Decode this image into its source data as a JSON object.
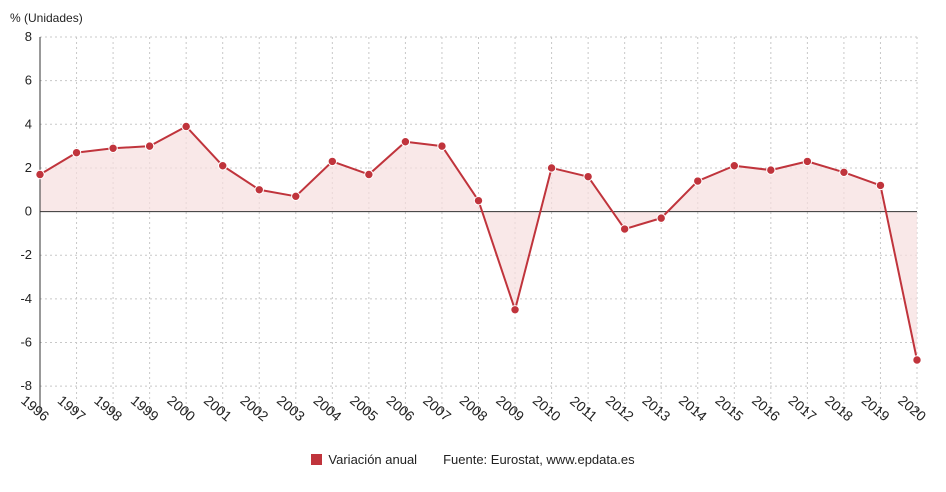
{
  "chart_data": {
    "type": "line",
    "unit_label": "% (Unidades)",
    "x": [
      "1996",
      "1997",
      "1998",
      "1999",
      "2000",
      "2001",
      "2002",
      "2003",
      "2004",
      "2005",
      "2006",
      "2007",
      "2008",
      "2009",
      "2010",
      "2011",
      "2012",
      "2013",
      "2014",
      "2015",
      "2016",
      "2017",
      "2018",
      "2019",
      "2020"
    ],
    "series": [
      {
        "name": "Variación anual",
        "values": [
          1.7,
          2.7,
          2.9,
          3.0,
          3.9,
          2.1,
          1.0,
          0.7,
          2.3,
          1.7,
          3.2,
          3.0,
          0.5,
          -4.5,
          2.0,
          1.6,
          -0.8,
          -0.3,
          1.4,
          2.1,
          1.9,
          2.3,
          1.8,
          1.2,
          -6.8
        ]
      }
    ],
    "ylim": [
      -9,
      8
    ],
    "yticks": [
      8,
      6,
      4,
      2,
      0,
      -2,
      -4,
      -6,
      -8
    ],
    "grid": true,
    "legend_position": "bottom",
    "colors": {
      "line": "#c0343c",
      "fill": "#f6dede",
      "zero_line": "#333333"
    }
  },
  "footer": {
    "source": "Fuente: Eurostat, www.epdata.es"
  }
}
